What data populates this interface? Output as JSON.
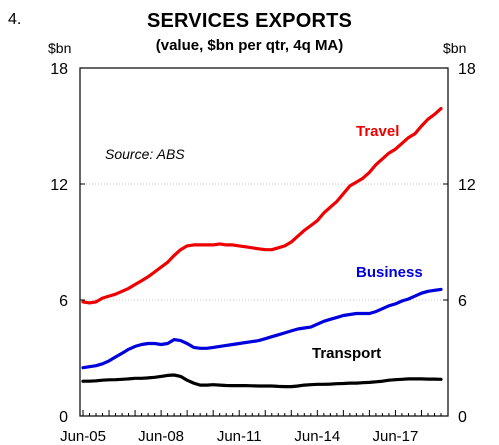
{
  "chart_data": {
    "type": "line",
    "number": "4.",
    "title": "SERVICES EXPORTS",
    "subtitle": "(value, $bn per qtr, 4q MA)",
    "ylabel_left": "$bn",
    "ylabel_right": "$bn",
    "source": "Source: ABS",
    "ylim": [
      0,
      18
    ],
    "y_ticks": [
      "0",
      "6",
      "12",
      "18"
    ],
    "x_ticks": [
      "Jun-05",
      "Jun-08",
      "Jun-11",
      "Jun-14",
      "Jun-17"
    ],
    "grid": "horizontal",
    "x": [
      "Jun-05",
      "Sep-05",
      "Dec-05",
      "Mar-06",
      "Jun-06",
      "Sep-06",
      "Dec-06",
      "Mar-07",
      "Jun-07",
      "Sep-07",
      "Dec-07",
      "Mar-08",
      "Jun-08",
      "Sep-08",
      "Dec-08",
      "Mar-09",
      "Jun-09",
      "Sep-09",
      "Dec-09",
      "Mar-10",
      "Jun-10",
      "Sep-10",
      "Dec-10",
      "Mar-11",
      "Jun-11",
      "Sep-11",
      "Dec-11",
      "Mar-12",
      "Jun-12",
      "Sep-12",
      "Dec-12",
      "Mar-13",
      "Jun-13",
      "Sep-13",
      "Dec-13",
      "Mar-14",
      "Jun-14",
      "Sep-14",
      "Dec-14",
      "Mar-15",
      "Jun-15",
      "Sep-15",
      "Dec-15",
      "Mar-16",
      "Jun-16",
      "Sep-16",
      "Dec-16",
      "Mar-17",
      "Jun-17",
      "Sep-17",
      "Dec-17",
      "Mar-18",
      "Jun-18",
      "Sep-18",
      "Dec-18",
      "Mar-19"
    ],
    "series": [
      {
        "name": "Travel",
        "color": "#ee0000",
        "values": [
          5.9,
          5.85,
          5.9,
          6.1,
          6.2,
          6.3,
          6.45,
          6.6,
          6.8,
          7.0,
          7.2,
          7.45,
          7.7,
          7.95,
          8.3,
          8.6,
          8.8,
          8.85,
          8.85,
          8.85,
          8.85,
          8.9,
          8.85,
          8.85,
          8.8,
          8.75,
          8.7,
          8.65,
          8.6,
          8.6,
          8.7,
          8.8,
          9.0,
          9.3,
          9.6,
          9.85,
          10.1,
          10.5,
          10.8,
          11.1,
          11.5,
          11.9,
          12.1,
          12.3,
          12.6,
          13.0,
          13.3,
          13.6,
          13.8,
          14.1,
          14.4,
          14.6,
          15.0,
          15.35,
          15.6,
          15.9
        ]
      },
      {
        "name": "Business",
        "color": "#0000dd",
        "values": [
          2.5,
          2.55,
          2.6,
          2.7,
          2.85,
          3.05,
          3.25,
          3.45,
          3.6,
          3.7,
          3.75,
          3.75,
          3.7,
          3.75,
          3.95,
          3.9,
          3.75,
          3.55,
          3.5,
          3.5,
          3.55,
          3.6,
          3.65,
          3.7,
          3.75,
          3.8,
          3.85,
          3.9,
          4.0,
          4.1,
          4.2,
          4.3,
          4.4,
          4.5,
          4.55,
          4.6,
          4.75,
          4.9,
          5.0,
          5.1,
          5.2,
          5.25,
          5.3,
          5.3,
          5.3,
          5.4,
          5.55,
          5.7,
          5.8,
          5.95,
          6.05,
          6.2,
          6.35,
          6.45,
          6.5,
          6.55
        ]
      },
      {
        "name": "Transport",
        "color": "#000000",
        "values": [
          1.8,
          1.8,
          1.82,
          1.85,
          1.87,
          1.88,
          1.9,
          1.92,
          1.95,
          1.95,
          1.97,
          2.0,
          2.05,
          2.1,
          2.12,
          2.05,
          1.85,
          1.7,
          1.6,
          1.6,
          1.62,
          1.6,
          1.58,
          1.57,
          1.57,
          1.57,
          1.56,
          1.55,
          1.55,
          1.55,
          1.53,
          1.52,
          1.52,
          1.55,
          1.6,
          1.62,
          1.64,
          1.64,
          1.65,
          1.67,
          1.68,
          1.7,
          1.7,
          1.72,
          1.74,
          1.77,
          1.8,
          1.85,
          1.88,
          1.9,
          1.92,
          1.92,
          1.92,
          1.91,
          1.91,
          1.9
        ]
      }
    ]
  }
}
